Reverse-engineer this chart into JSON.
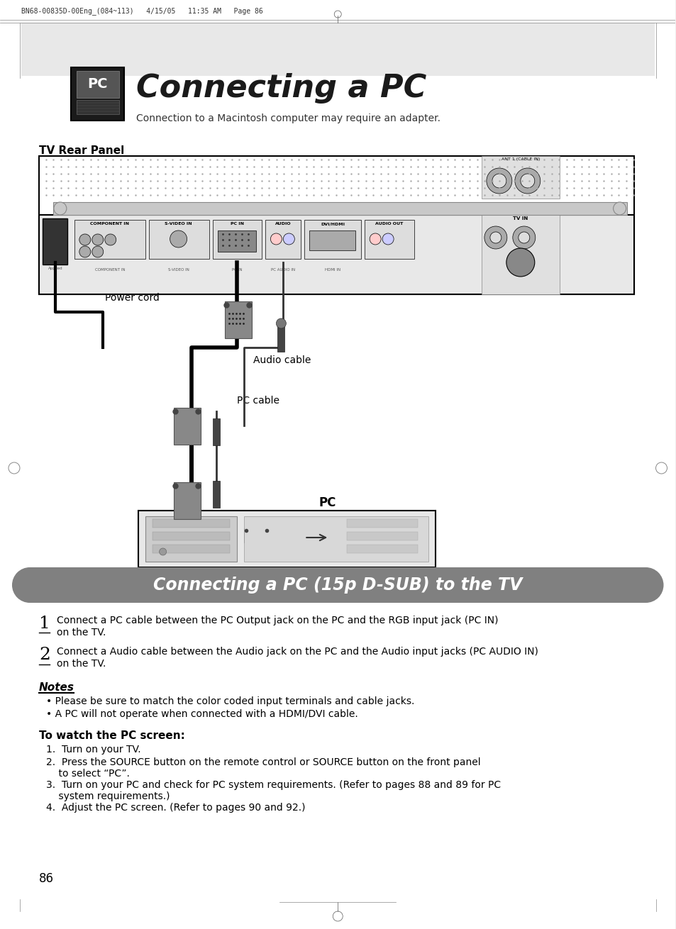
{
  "page_bg": "#f0f0f0",
  "content_bg": "#ffffff",
  "header_text": "BN68-00835D-00Eng_(084~113)   4/15/05   11:35 AM   Page 86",
  "title": "Connecting a PC",
  "subtitle": "Connection to a Macintosh computer may require an adapter.",
  "tv_rear_panel_label": "TV Rear Panel",
  "labels": {
    "power_cord": "Power cord",
    "audio_cable": "Audio cable",
    "pc_cable": "PC cable",
    "pc": "PC"
  },
  "section_bg": "#808080",
  "section_title": "Connecting a PC (15p D-SUB) to the TV",
  "section_title_color": "#ffffff",
  "step1_line1": "Connect a PC cable between the PC Output jack on the PC and the RGB input jack (PC IN)",
  "step1_line2": "on the TV.",
  "step2_line1": "Connect a Audio cable between the Audio jack on the PC and the Audio input jacks (PC AUDIO IN)",
  "step2_line2": "on the TV.",
  "notes_title": "Notes",
  "note1": "Please be sure to match the color coded input terminals and cable jacks.",
  "note2": "A PC will not operate when connected with a HDMI/DVI cable.",
  "watch_title": "To watch the PC screen:",
  "watch_step1": "Turn on your TV.",
  "watch_step2a": "Press the SOURCE button on the remote control or SOURCE button on the front panel",
  "watch_step2b": "    to select “PC”.",
  "watch_step3a": "Turn on your PC and check for PC system requirements. (Refer to pages 88 and 89 for PC",
  "watch_step3b": "    system requirements.)",
  "watch_step4": "Adjust the PC screen. (Refer to pages 90 and 92.)",
  "page_number": "86",
  "border_color": "#000000",
  "text_color": "#000000",
  "gray_light": "#d0d0d0",
  "gray_medium": "#a0a0a0"
}
